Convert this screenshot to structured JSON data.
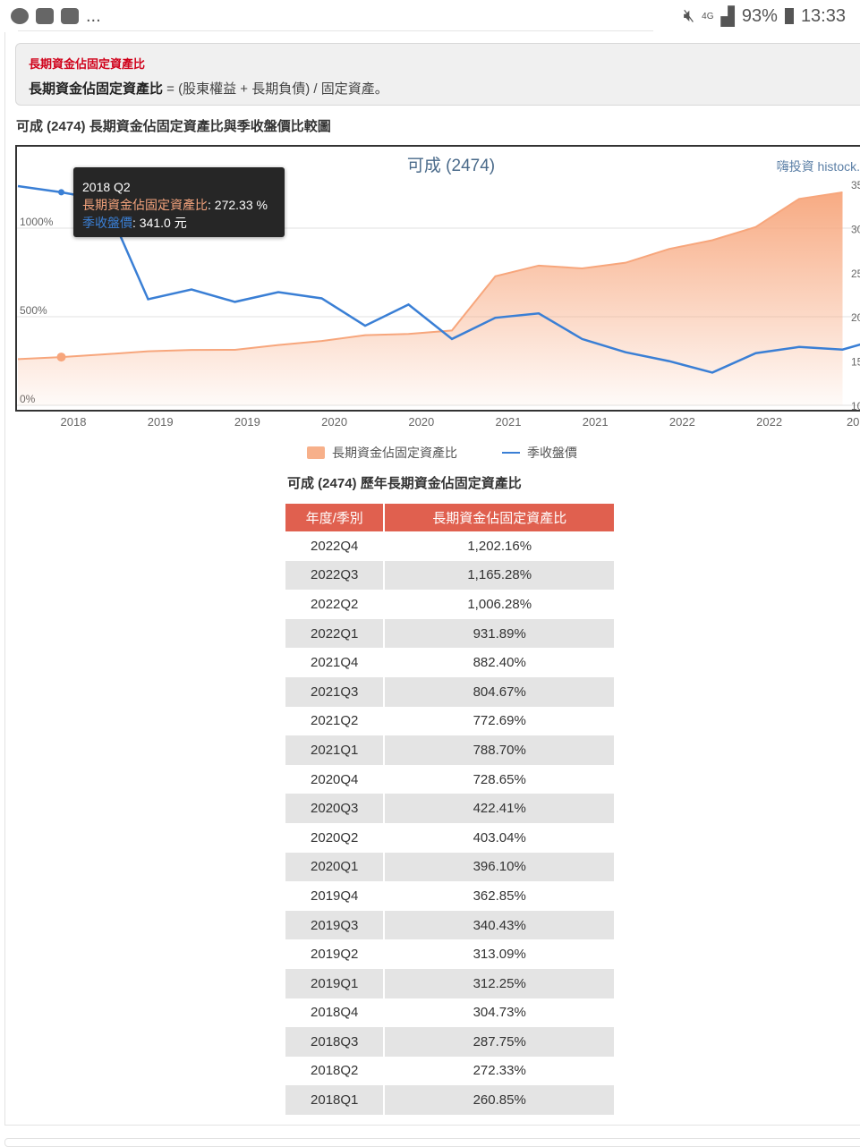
{
  "status_bar": {
    "dots": "...",
    "network": "4G",
    "battery": "93%",
    "time": "13:33"
  },
  "note": {
    "title": "長期資金佔固定資產比",
    "formula_bold": "長期資金佔固定資產比",
    "formula_rest": " = (股東權益 + 長期負債) / 固定資產。"
  },
  "section_title": "可成 (2474) 長期資金佔固定資產比與季收盤價比較圖",
  "chart_data": {
    "type": "area+line",
    "title": "可成 (2474)",
    "watermark": "嗨投資 histock.",
    "x": [
      "2018Q1",
      "2018Q2",
      "2018Q3",
      "2018Q4",
      "2019Q1",
      "2019Q2",
      "2019Q3",
      "2019Q4",
      "2020Q1",
      "2020Q2",
      "2020Q3",
      "2020Q4",
      "2021Q1",
      "2021Q2",
      "2021Q3",
      "2021Q4",
      "2022Q1",
      "2022Q2",
      "2022Q3",
      "2022Q4"
    ],
    "x_tick_labels": [
      "2018",
      "2019",
      "2019",
      "2020",
      "2020",
      "2021",
      "2021",
      "2022",
      "2022",
      "202"
    ],
    "left_axis": {
      "ticks": [
        "0%",
        "500%",
        "1000%"
      ],
      "range": [
        0,
        1500
      ]
    },
    "right_axis": {
      "ticks": [
        "10",
        "15",
        "20",
        "25",
        "30",
        "35"
      ],
      "range": [
        100,
        350
      ]
    },
    "series": [
      {
        "name": "長期資金佔固定資產比",
        "type": "area",
        "color": "#f7a67c",
        "values": [
          260.85,
          272.33,
          287.75,
          304.73,
          312.25,
          313.09,
          340.43,
          362.85,
          396.1,
          403.04,
          422.41,
          728.65,
          788.7,
          772.69,
          804.67,
          882.4,
          931.89,
          1006.28,
          1165.28,
          1202.16
        ]
      },
      {
        "name": "季收盤價",
        "type": "line",
        "color": "#3a7fd5",
        "values": [
          348,
          341,
          332,
          220,
          231,
          217,
          228,
          221,
          190,
          214,
          175,
          199,
          204,
          175,
          160,
          150,
          137,
          159,
          166,
          163
        ]
      }
    ],
    "tooltip": {
      "period": "2018 Q2",
      "ratio_label": "長期資金佔固定資產比",
      "ratio_value": ": 272.33 %",
      "price_label": "季收盤價",
      "price_value": ": 341.0 元"
    },
    "legend": [
      "長期資金佔固定資產比",
      "季收盤價"
    ]
  },
  "table": {
    "title": "可成 (2474) 歷年長期資金佔固定資產比",
    "headers": [
      "年度/季別",
      "長期資金佔固定資產比"
    ],
    "rows": [
      [
        "2022Q4",
        "1,202.16%"
      ],
      [
        "2022Q3",
        "1,165.28%"
      ],
      [
        "2022Q2",
        "1,006.28%"
      ],
      [
        "2022Q1",
        "931.89%"
      ],
      [
        "2021Q4",
        "882.40%"
      ],
      [
        "2021Q3",
        "804.67%"
      ],
      [
        "2021Q2",
        "772.69%"
      ],
      [
        "2021Q1",
        "788.70%"
      ],
      [
        "2020Q4",
        "728.65%"
      ],
      [
        "2020Q3",
        "422.41%"
      ],
      [
        "2020Q2",
        "403.04%"
      ],
      [
        "2020Q1",
        "396.10%"
      ],
      [
        "2019Q4",
        "362.85%"
      ],
      [
        "2019Q3",
        "340.43%"
      ],
      [
        "2019Q2",
        "313.09%"
      ],
      [
        "2019Q1",
        "312.25%"
      ],
      [
        "2018Q4",
        "304.73%"
      ],
      [
        "2018Q3",
        "287.75%"
      ],
      [
        "2018Q2",
        "272.33%"
      ],
      [
        "2018Q1",
        "260.85%"
      ]
    ]
  }
}
